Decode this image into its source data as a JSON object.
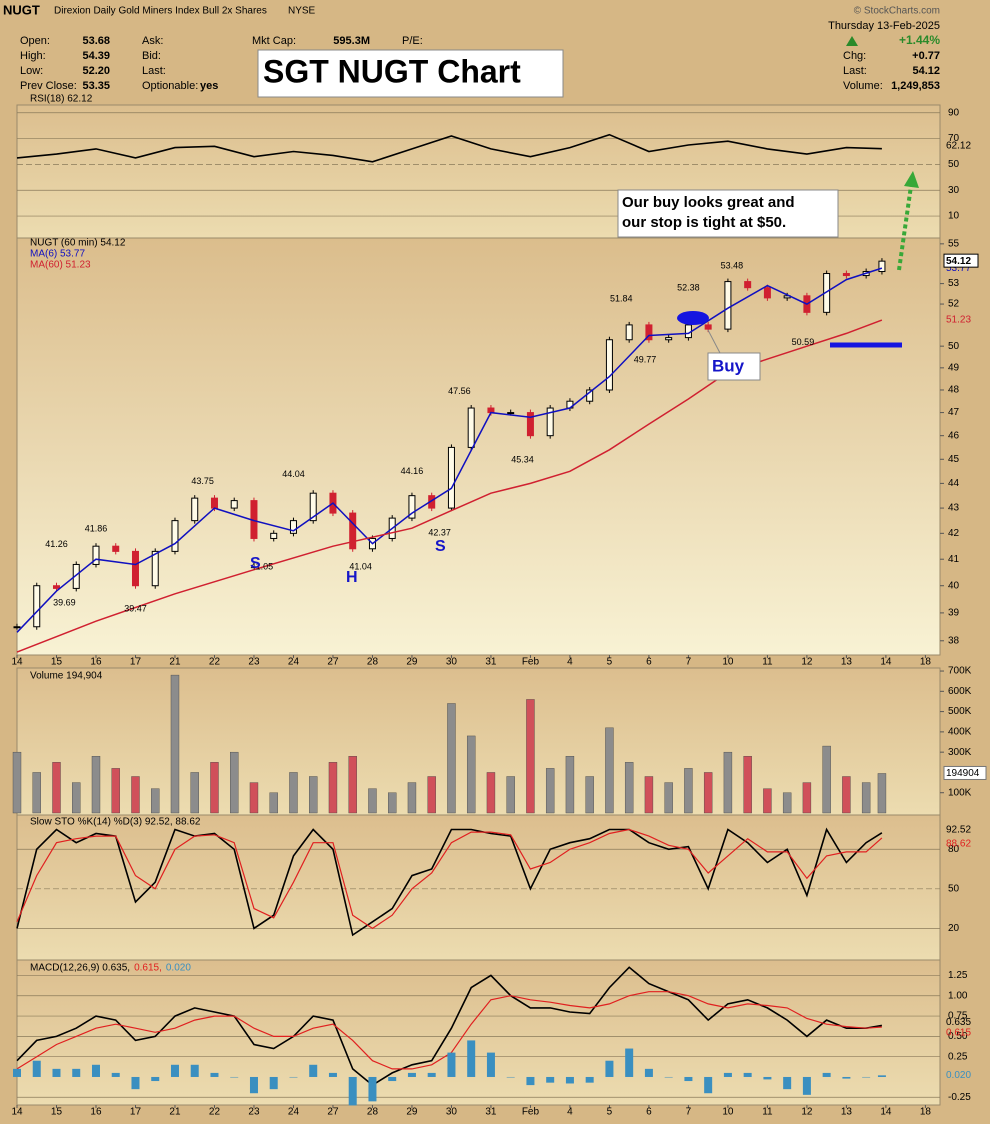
{
  "header": {
    "symbol": "NUGT",
    "name": "Direxion Daily Gold Miners Index Bull 2x Shares",
    "exchange": "NYSE",
    "credit": "© StockCharts.com",
    "open_label": "Open:",
    "open": "53.68",
    "high_label": "High:",
    "high": "54.39",
    "low_label": "Low:",
    "low": "52.20",
    "prev_label": "Prev Close:",
    "prev": "53.35",
    "ask_label": "Ask:",
    "bid_label": "Bid:",
    "last_label": "Last:",
    "opt_label": "Optionable:",
    "opt": "yes",
    "cap_label": "Mkt Cap:",
    "cap": "595.3M",
    "pe_label": "P/E:",
    "date": "Thursday  13-Feb-2025",
    "pct": "+1.44%",
    "chg_label": "Chg:",
    "chg": "+0.77",
    "last2_label": "Last:",
    "last": "54.12",
    "vol_label": "Volume:",
    "vol": "1,249,853"
  },
  "annotations": {
    "title_box": "SGT NUGT Chart",
    "note": [
      "Our buy looks great and",
      "our stop is tight at $50."
    ],
    "buy": "Buy",
    "patterns": [
      "S",
      "H",
      "S"
    ]
  },
  "chart_data": [
    {
      "type": "line",
      "title": "RSI(18) 62.12",
      "xlim": [
        0,
        23.37
      ],
      "ylim": [
        -7,
        96
      ],
      "yticks": [
        90,
        70,
        50,
        30,
        10
      ],
      "grid": true,
      "x": [
        0,
        1,
        2,
        3,
        4,
        5,
        6,
        7,
        8,
        9,
        10,
        11,
        12,
        13,
        14,
        15,
        16,
        17,
        18,
        19,
        20,
        21,
        21.9
      ],
      "series": [
        {
          "name": "RSI(18) 62.12",
          "color": "#000000",
          "values": [
            55,
            58,
            62,
            55,
            63,
            64,
            56,
            60,
            57,
            52,
            62,
            72,
            62,
            56,
            63,
            73,
            60,
            65,
            68,
            62,
            58,
            63,
            62.12
          ]
        }
      ]
    },
    {
      "type": "candlestick",
      "title": "NUGT (60 min) 54.12",
      "log": true,
      "xlim": [
        0,
        23.37
      ],
      "ylim": [
        37.5,
        55.3
      ],
      "yticks": [
        38,
        39,
        40,
        41,
        42,
        43,
        44,
        45,
        46,
        47,
        48,
        49,
        50,
        52,
        53,
        55
      ],
      "xticks": [
        {
          "value": 0,
          "label": "14"
        },
        {
          "value": 1,
          "label": "15"
        },
        {
          "value": 2,
          "label": "16"
        },
        {
          "value": 3,
          "label": "17"
        },
        {
          "value": 4,
          "label": "21"
        },
        {
          "value": 5,
          "label": "22"
        },
        {
          "value": 6,
          "label": "23"
        },
        {
          "value": 7,
          "label": "24"
        },
        {
          "value": 8,
          "label": "27"
        },
        {
          "value": 9,
          "label": "28"
        },
        {
          "value": 10,
          "label": "29"
        },
        {
          "value": 11,
          "label": "30"
        },
        {
          "value": 12,
          "label": "31"
        },
        {
          "value": 13,
          "label": "Feb"
        },
        {
          "value": 14,
          "label": "4"
        },
        {
          "value": 15,
          "label": "5"
        },
        {
          "value": 16,
          "label": "6"
        },
        {
          "value": 17,
          "label": "7"
        },
        {
          "value": 18,
          "label": "10"
        },
        {
          "value": 19,
          "label": "11"
        },
        {
          "value": 20,
          "label": "12"
        },
        {
          "value": 21,
          "label": "13"
        },
        {
          "value": 22,
          "label": "14"
        },
        {
          "value": 23,
          "label": "18"
        }
      ],
      "x": [
        0,
        0.5,
        1,
        1.5,
        2,
        2.5,
        3,
        3.5,
        4,
        4.5,
        5,
        5.5,
        6,
        6.5,
        7,
        7.5,
        8,
        8.5,
        9,
        9.5,
        10,
        10.5,
        11,
        11.5,
        12,
        12.5,
        13,
        13.5,
        14,
        14.5,
        15,
        15.5,
        16,
        16.5,
        17,
        17.5,
        18,
        18.5,
        19,
        19.5,
        20,
        20.5,
        21,
        21.5,
        21.9
      ],
      "series": [
        {
          "name": "NUGT (60 min) 54.12",
          "color": "#000000",
          "down_color": "#d02030",
          "values": [
            38.5,
            40.0,
            39.9,
            40.8,
            41.5,
            41.3,
            40.0,
            41.3,
            42.5,
            43.4,
            43.0,
            43.3,
            41.8,
            42.0,
            42.5,
            43.6,
            42.8,
            41.4,
            41.8,
            42.6,
            43.5,
            43.0,
            45.5,
            47.2,
            47.0,
            47.0,
            46.0,
            47.2,
            47.5,
            48.0,
            50.3,
            51.0,
            50.3,
            50.4,
            51.0,
            50.8,
            53.1,
            52.8,
            52.3,
            52.4,
            51.6,
            53.5,
            53.4,
            53.6,
            54.12
          ]
        },
        {
          "name": "MA(6) 53.77",
          "color": "#1010c0",
          "x": [
            0,
            1,
            2,
            3,
            4,
            5,
            6,
            7,
            8,
            9,
            10,
            11,
            12,
            13,
            14,
            15,
            16,
            17,
            18,
            19,
            20,
            21,
            21.9
          ],
          "values": [
            38.3,
            39.8,
            41.0,
            40.8,
            41.6,
            43.0,
            42.5,
            42.1,
            43.2,
            41.6,
            42.8,
            43.8,
            47.0,
            46.8,
            47.2,
            48.6,
            50.5,
            50.6,
            51.8,
            52.9,
            52.0,
            53.2,
            53.77
          ]
        },
        {
          "name": "MA(60) 51.23",
          "color": "#d02030",
          "x": [
            0,
            2,
            4,
            6,
            8,
            10,
            11,
            12,
            13,
            14,
            15,
            16,
            17,
            18,
            19,
            20,
            21,
            21.9
          ],
          "values": [
            37.6,
            38.7,
            39.7,
            40.6,
            41.5,
            42.2,
            42.9,
            43.6,
            44.0,
            44.5,
            45.4,
            46.5,
            47.6,
            48.8,
            49.4,
            50.0,
            50.6,
            51.23
          ]
        }
      ],
      "price_labels": [
        {
          "x": 1,
          "value": 41.26
        },
        {
          "x": 1.2,
          "value": 39.69
        },
        {
          "x": 2,
          "value": 41.86
        },
        {
          "x": 3,
          "value": 39.47
        },
        {
          "x": 4.7,
          "value": 43.75
        },
        {
          "x": 6.2,
          "value": 41.05
        },
        {
          "x": 7,
          "value": 44.04
        },
        {
          "x": 8.7,
          "value": 41.04
        },
        {
          "x": 10,
          "value": 44.16
        },
        {
          "x": 10.7,
          "value": 42.37
        },
        {
          "x": 11.2,
          "value": 47.56
        },
        {
          "x": 12.8,
          "value": 45.34
        },
        {
          "x": 15.3,
          "value": 51.84
        },
        {
          "x": 15.9,
          "value": 49.77
        },
        {
          "x": 17,
          "value": 52.38
        },
        {
          "x": 18.1,
          "value": 53.48
        },
        {
          "x": 19.9,
          "value": 50.59
        }
      ]
    },
    {
      "type": "bar",
      "title": "Volume 194,904",
      "xlim": [
        0,
        23.37
      ],
      "ylim": [
        0,
        715000
      ],
      "yticks": [
        {
          "value": 100000,
          "label": "100K"
        },
        {
          "value": 300000,
          "label": "300K"
        },
        {
          "value": 400000,
          "label": "400K"
        },
        {
          "value": 500000,
          "label": "500K"
        },
        {
          "value": 600000,
          "label": "600K"
        },
        {
          "value": 700000,
          "label": "700K"
        }
      ],
      "up_color": "#8c8c8c",
      "down_color": "#d0505a",
      "values": [
        300000,
        200000,
        250000,
        150000,
        280000,
        220000,
        180000,
        120000,
        680000,
        200000,
        250000,
        300000,
        150000,
        100000,
        200000,
        180000,
        250000,
        280000,
        120000,
        100000,
        150000,
        180000,
        540000,
        380000,
        200000,
        180000,
        560000,
        220000,
        280000,
        180000,
        420000,
        250000,
        180000,
        150000,
        220000,
        200000,
        300000,
        280000,
        120000,
        100000,
        150000,
        330000,
        180000,
        150000,
        194904
      ]
    },
    {
      "type": "line",
      "title": "Slow STO %K(14) %D(3) 92.52, 88.62",
      "xlim": [
        0,
        23.37
      ],
      "ylim": [
        -4,
        106
      ],
      "yticks": [
        80,
        50,
        20
      ],
      "grid": true,
      "series": [
        {
          "color": "#000000",
          "values": [
            20,
            80,
            95,
            85,
            92,
            90,
            40,
            55,
            95,
            90,
            92,
            80,
            20,
            30,
            75,
            95,
            80,
            15,
            25,
            35,
            60,
            65,
            95,
            95,
            92,
            90,
            50,
            80,
            85,
            88,
            95,
            95,
            85,
            80,
            82,
            50,
            95,
            85,
            70,
            80,
            45,
            95,
            70,
            85,
            92.52
          ]
        },
        {
          "color": "#e02020",
          "values": [
            25,
            60,
            85,
            88,
            90,
            90,
            60,
            50,
            80,
            90,
            91,
            85,
            35,
            28,
            55,
            85,
            85,
            30,
            20,
            30,
            50,
            62,
            85,
            93,
            93,
            91,
            65,
            70,
            80,
            85,
            92,
            95,
            90,
            83,
            80,
            62,
            75,
            88,
            78,
            78,
            58,
            75,
            78,
            78,
            88.62
          ]
        }
      ]
    },
    {
      "type": "line",
      "title_parts": [
        "MACD(12,26,9) 0.635,",
        "0.615,",
        "0.020"
      ],
      "xlim": [
        0,
        23.37
      ],
      "ylim": [
        -0.345,
        1.44
      ],
      "yticks": [
        1.25,
        {
          "value": 1,
          "label": "1.00"
        },
        0.75,
        {
          "value": 0.5,
          "label": "0.50"
        },
        0.25,
        -0.25
      ],
      "grid": true,
      "series": [
        {
          "color": "#000000",
          "values": [
            0.2,
            0.45,
            0.5,
            0.6,
            0.75,
            0.7,
            0.45,
            0.5,
            0.75,
            0.85,
            0.8,
            0.75,
            0.4,
            0.35,
            0.5,
            0.75,
            0.7,
            0.1,
            -0.1,
            0.05,
            0.15,
            0.2,
            0.6,
            1.1,
            1.25,
            1.0,
            0.85,
            0.85,
            0.8,
            0.78,
            1.1,
            1.35,
            1.15,
            1.05,
            0.95,
            0.7,
            0.9,
            0.95,
            0.85,
            0.7,
            0.5,
            0.7,
            0.6,
            0.6,
            0.635
          ]
        },
        {
          "color": "#e02020",
          "values": [
            0.1,
            0.25,
            0.4,
            0.5,
            0.6,
            0.65,
            0.6,
            0.55,
            0.6,
            0.7,
            0.75,
            0.75,
            0.6,
            0.5,
            0.5,
            0.6,
            0.65,
            0.45,
            0.2,
            0.1,
            0.1,
            0.15,
            0.3,
            0.65,
            0.95,
            1.0,
            0.95,
            0.92,
            0.88,
            0.85,
            0.9,
            1.0,
            1.05,
            1.05,
            1.0,
            0.9,
            0.85,
            0.9,
            0.88,
            0.85,
            0.72,
            0.65,
            0.62,
            0.6,
            0.615
          ]
        },
        {
          "color": "#3a8fc0",
          "kind": "bar",
          "last_label": "0.020",
          "values": [
            0.1,
            0.2,
            0.1,
            0.1,
            0.15,
            0.05,
            -0.15,
            -0.05,
            0.15,
            0.15,
            0.05,
            0,
            -0.2,
            -0.15,
            0,
            0.15,
            0.05,
            -0.35,
            -0.3,
            -0.05,
            0.05,
            0.05,
            0.3,
            0.45,
            0.3,
            0,
            -0.1,
            -0.07,
            -0.08,
            -0.07,
            0.2,
            0.35,
            0.1,
            0,
            -0.05,
            -0.2,
            0.05,
            0.05,
            -0.03,
            -0.15,
            -0.22,
            0.05,
            -0.02,
            0,
            0.02
          ]
        }
      ]
    }
  ]
}
